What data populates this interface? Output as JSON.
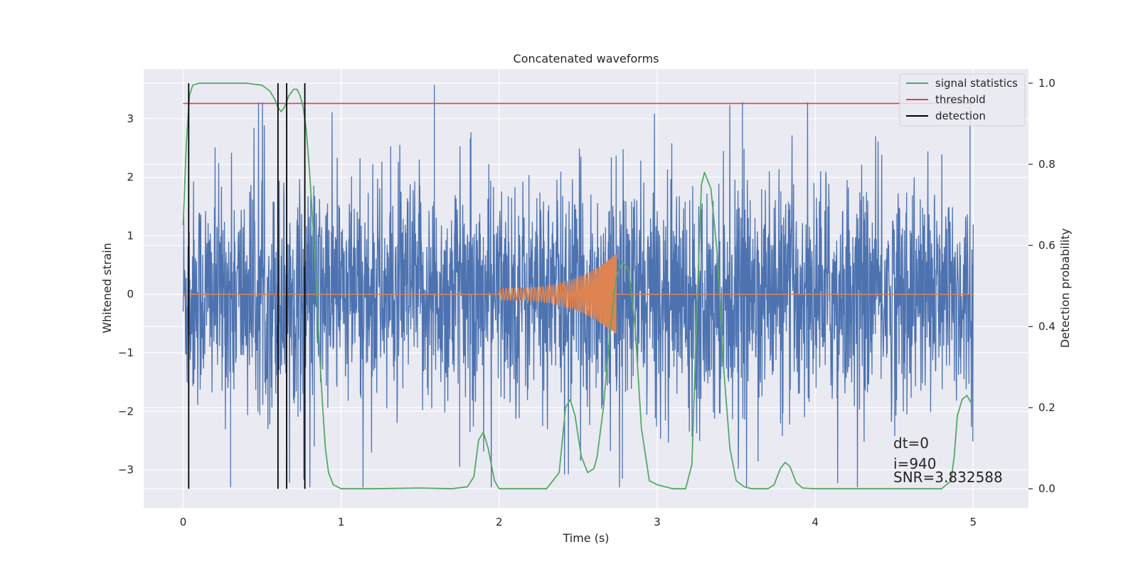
{
  "chart_data": {
    "type": "line",
    "title": "Concatenated waveforms",
    "xlabel": "Time (s)",
    "ylabel": "Whitened strain",
    "y2label": "Detection probability",
    "xlim": [
      -0.25,
      5.35
    ],
    "ylim": [
      -3.65,
      3.85
    ],
    "y2lim": [
      -0.047,
      1.035
    ],
    "x_ticks": [
      0,
      1,
      2,
      3,
      4,
      5
    ],
    "y_ticks": [
      -3,
      -2,
      -1,
      0,
      1,
      2,
      3
    ],
    "y2_ticks": [
      0.0,
      0.2,
      0.4,
      0.6,
      0.8,
      1.0
    ],
    "x_tick_labels": [
      "0",
      "1",
      "2",
      "3",
      "4",
      "5"
    ],
    "y_tick_labels": [
      "−3",
      "−2",
      "−1",
      "0",
      "1",
      "2",
      "3"
    ],
    "y2_tick_labels": [
      "0.0",
      "0.2",
      "0.4",
      "0.6",
      "0.8",
      "1.0"
    ],
    "grid": true,
    "legend_position": "top-right",
    "series": [
      {
        "name": "whitened strain (noise)",
        "axis": "left",
        "color": "#4c72b0",
        "x_range": [
          0,
          5
        ],
        "envelope_typical": [
          -1.2,
          1.2
        ],
        "peak_max": 3.58,
        "peak_min": -3.3
      },
      {
        "name": "injected waveform",
        "axis": "left",
        "color": "#dd8452",
        "chirp_start": 2.0,
        "chirp_end": 2.74,
        "peak_amplitude": 0.7
      },
      {
        "name": "signal statistics",
        "axis": "right",
        "color": "#55a868",
        "x": [
          0,
          0.02,
          0.04,
          0.06,
          0.1,
          0.15,
          0.2,
          0.3,
          0.4,
          0.5,
          0.55,
          0.58,
          0.6,
          0.62,
          0.64,
          0.67,
          0.7,
          0.72,
          0.74,
          0.76,
          0.78,
          0.8,
          0.82,
          0.84,
          0.86,
          0.88,
          0.9,
          0.92,
          0.95,
          1.0,
          1.2,
          1.5,
          1.7,
          1.8,
          1.84,
          1.87,
          1.9,
          1.93,
          1.97,
          2.0,
          2.3,
          2.38,
          2.42,
          2.45,
          2.48,
          2.52,
          2.56,
          2.6,
          2.62,
          2.66,
          2.7,
          2.74,
          2.78,
          2.82,
          2.86,
          2.9,
          2.95,
          3.0,
          3.1,
          3.18,
          3.22,
          3.25,
          3.28,
          3.3,
          3.34,
          3.38,
          3.42,
          3.46,
          3.5,
          3.55,
          3.6,
          3.7,
          3.74,
          3.78,
          3.81,
          3.84,
          3.88,
          3.92,
          4.0,
          4.5,
          4.8,
          4.86,
          4.88,
          4.9,
          4.93,
          4.96,
          4.99
        ],
        "y": [
          0.65,
          0.85,
          0.97,
          0.995,
          1.0,
          1.0,
          1.0,
          1.0,
          1.0,
          0.995,
          0.98,
          0.96,
          0.94,
          0.93,
          0.94,
          0.97,
          0.985,
          0.985,
          0.97,
          0.94,
          0.88,
          0.78,
          0.66,
          0.52,
          0.36,
          0.22,
          0.1,
          0.04,
          0.01,
          0.0,
          0.0,
          0.002,
          0.0,
          0.005,
          0.03,
          0.12,
          0.14,
          0.1,
          0.02,
          0.0,
          0.0,
          0.04,
          0.2,
          0.22,
          0.18,
          0.08,
          0.04,
          0.05,
          0.08,
          0.2,
          0.38,
          0.52,
          0.56,
          0.54,
          0.4,
          0.15,
          0.02,
          0.01,
          0.0,
          0.0,
          0.06,
          0.42,
          0.75,
          0.78,
          0.74,
          0.58,
          0.3,
          0.1,
          0.02,
          0.005,
          0.0,
          0.0,
          0.01,
          0.05,
          0.065,
          0.055,
          0.015,
          0.002,
          0.0,
          0.0,
          0.0,
          0.02,
          0.08,
          0.18,
          0.22,
          0.23,
          0.21
        ]
      },
      {
        "name": "threshold",
        "axis": "right",
        "color": "#c44e52",
        "value": 0.95,
        "x_range": [
          0,
          5
        ]
      },
      {
        "name": "detection",
        "axis": "right",
        "color": "#000000",
        "x": [
          0.035,
          0.6,
          0.655,
          0.77
        ],
        "y_range": [
          0,
          1
        ]
      }
    ],
    "legend": [
      "signal statistics",
      "threshold",
      "detection"
    ],
    "annotations": [
      "dt=0",
      "i=940",
      "SNR=3.832588"
    ]
  }
}
